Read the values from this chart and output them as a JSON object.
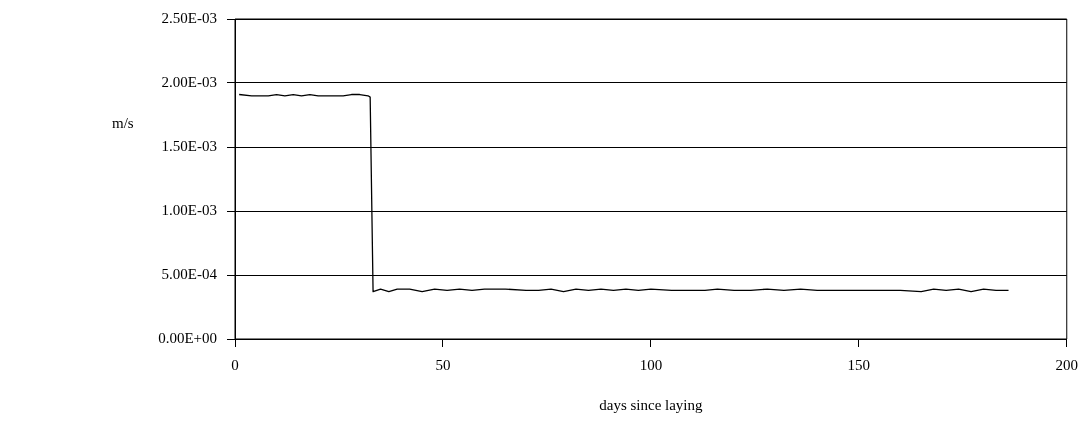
{
  "chart_data": {
    "type": "line",
    "xlabel": "days since laying",
    "ylabel": "m/s",
    "x": [
      1,
      4,
      6,
      8,
      10,
      12,
      14,
      16,
      18,
      20,
      22,
      24,
      26,
      28,
      30,
      32,
      32.5,
      33.2,
      35,
      37,
      39,
      42,
      45,
      48,
      51,
      54,
      57,
      60,
      65,
      70,
      73,
      76,
      79,
      82,
      85,
      88,
      91,
      94,
      97,
      100,
      105,
      110,
      113,
      116,
      120,
      124,
      128,
      132,
      136,
      140,
      145,
      150,
      155,
      160,
      165,
      168,
      171,
      174,
      177,
      180,
      183,
      186
    ],
    "series": [
      {
        "color": "#000000",
        "values": [
          0.00191,
          0.0019,
          0.0019,
          0.0019,
          0.00191,
          0.0019,
          0.00191,
          0.0019,
          0.00191,
          0.0019,
          0.0019,
          0.0019,
          0.0019,
          0.00191,
          0.00191,
          0.0019,
          0.00189,
          0.00037,
          0.00039,
          0.00037,
          0.00039,
          0.00039,
          0.00037,
          0.00039,
          0.00038,
          0.00039,
          0.00038,
          0.00039,
          0.00039,
          0.00038,
          0.00038,
          0.00039,
          0.00037,
          0.00039,
          0.00038,
          0.00039,
          0.00038,
          0.00039,
          0.00038,
          0.00039,
          0.00038,
          0.00038,
          0.00038,
          0.00039,
          0.00038,
          0.00038,
          0.00039,
          0.00038,
          0.00039,
          0.00038,
          0.00038,
          0.00038,
          0.00038,
          0.00038,
          0.00037,
          0.00039,
          0.00038,
          0.00039,
          0.00037,
          0.00039,
          0.00038,
          0.00038
        ]
      }
    ],
    "xlim": [
      0,
      200
    ],
    "xticks": [
      0,
      50,
      100,
      150,
      200
    ],
    "ylim": [
      0,
      0.0025
    ],
    "yticks": [
      {
        "value": 0,
        "label": "0.00E+00"
      },
      {
        "value": 0.0005,
        "label": "5.00E-04"
      },
      {
        "value": 0.001,
        "label": "1.00E-03"
      },
      {
        "value": 0.0015,
        "label": "1.50E-03"
      },
      {
        "value": 0.002,
        "label": "2.00E-03"
      },
      {
        "value": 0.0025,
        "label": "2.50E-03"
      }
    ],
    "grid": "y",
    "legend": false,
    "marker": "none",
    "line_style": "solid"
  }
}
